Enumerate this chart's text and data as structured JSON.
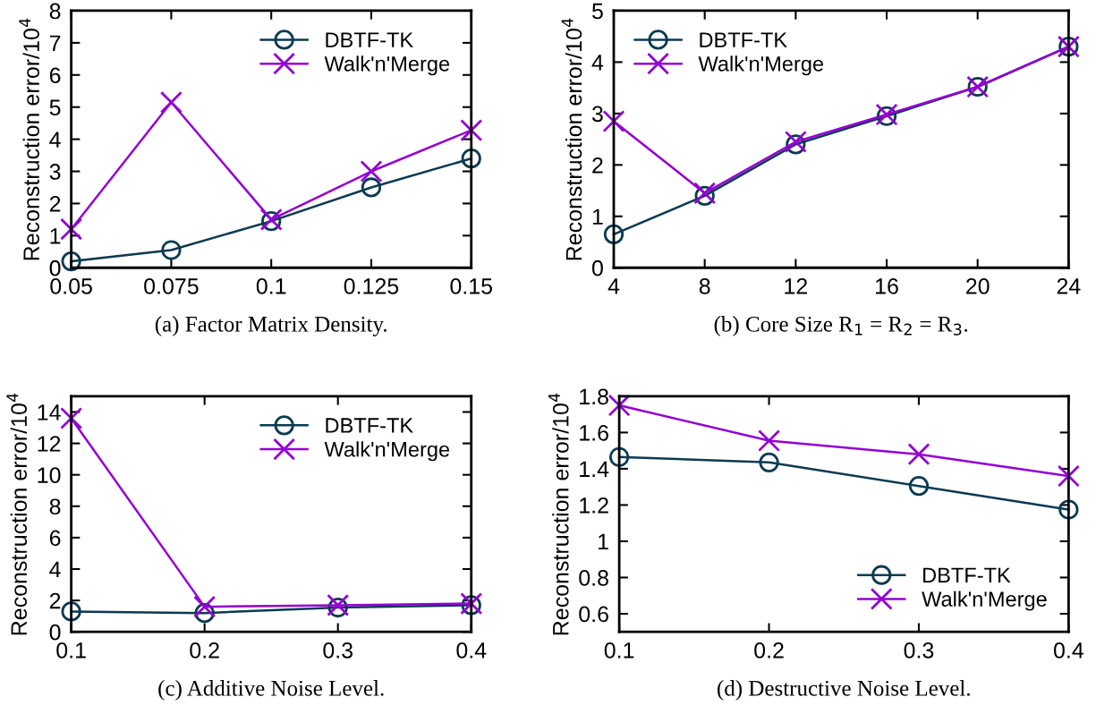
{
  "chart_data": [
    {
      "type": "line",
      "xlabel": "(a) Factor Matrix Density.",
      "ylabel": "Reconstruction error/10$^{4}$",
      "x": [
        0.05,
        0.075,
        0.1,
        0.125,
        0.15
      ],
      "xlim": [
        0.05,
        0.15
      ],
      "xticks": [
        0.05,
        0.075,
        0.1,
        0.125,
        0.15
      ],
      "ylim": [
        0,
        8
      ],
      "yticks": [
        0,
        1,
        2,
        3,
        4,
        5,
        6,
        7,
        8
      ],
      "grid": false,
      "legend": "top right",
      "series": [
        {
          "name": "DBTF-TK",
          "color": "#0b3a52",
          "marker": "circle",
          "values": [
            0.2,
            0.55,
            1.45,
            2.5,
            3.4
          ]
        },
        {
          "name": "Walk'n'Merge",
          "color": "#9400d3",
          "marker": "cross",
          "values": [
            1.2,
            5.15,
            1.5,
            3.0,
            4.28
          ]
        }
      ]
    },
    {
      "type": "line",
      "xlabel": "(b) Core Size R$_{1}$ = R$_{2}$ = R$_{3}$.",
      "ylabel": "Reconstruction error/10$^{4}$",
      "x": [
        4,
        8,
        12,
        16,
        20,
        24
      ],
      "xlim": [
        4,
        24
      ],
      "xticks": [
        4,
        8,
        12,
        16,
        20,
        24
      ],
      "ylim": [
        0,
        5
      ],
      "yticks": [
        0,
        1,
        2,
        3,
        4,
        5
      ],
      "grid": false,
      "legend": "top left",
      "series": [
        {
          "name": "DBTF-TK",
          "color": "#0b3a52",
          "marker": "circle",
          "values": [
            0.65,
            1.4,
            2.4,
            2.95,
            3.52,
            4.3
          ]
        },
        {
          "name": "Walk'n'Merge",
          "color": "#9400d3",
          "marker": "cross",
          "values": [
            2.85,
            1.45,
            2.45,
            2.98,
            3.52,
            4.3
          ]
        }
      ]
    },
    {
      "type": "line",
      "xlabel": "(c) Additive Noise Level.",
      "ylabel": "Reconstruction error/10$^{4}$",
      "x": [
        0.1,
        0.2,
        0.3,
        0.4
      ],
      "xlim": [
        0.1,
        0.4
      ],
      "xticks": [
        0.1,
        0.2,
        0.3,
        0.4
      ],
      "ylim": [
        0,
        15
      ],
      "yticks": [
        0,
        2,
        4,
        6,
        8,
        10,
        12,
        14
      ],
      "grid": false,
      "legend": "top right",
      "series": [
        {
          "name": "DBTF-TK",
          "color": "#0b3a52",
          "marker": "circle",
          "values": [
            1.3,
            1.2,
            1.55,
            1.7
          ]
        },
        {
          "name": "Walk'n'Merge",
          "color": "#9400d3",
          "marker": "cross",
          "values": [
            13.6,
            1.6,
            1.7,
            1.8
          ]
        }
      ]
    },
    {
      "type": "line",
      "xlabel": "(d) Destructive Noise Level.",
      "ylabel": "Reconstruction error/10$^{4}$",
      "x": [
        0.1,
        0.2,
        0.3,
        0.4
      ],
      "xlim": [
        0.1,
        0.4
      ],
      "xticks": [
        0.1,
        0.2,
        0.3,
        0.4
      ],
      "ylim": [
        0.5,
        1.8
      ],
      "yticks": [
        0.6,
        0.8,
        1,
        1.2,
        1.4,
        1.6,
        1.8
      ],
      "grid": false,
      "legend": "bottom right",
      "series": [
        {
          "name": "DBTF-TK",
          "color": "#0b3a52",
          "marker": "circle",
          "values": [
            1.465,
            1.435,
            1.305,
            1.175
          ]
        },
        {
          "name": "Walk'n'Merge",
          "color": "#9400d3",
          "marker": "cross",
          "values": [
            1.75,
            1.555,
            1.48,
            1.36
          ]
        }
      ]
    }
  ]
}
